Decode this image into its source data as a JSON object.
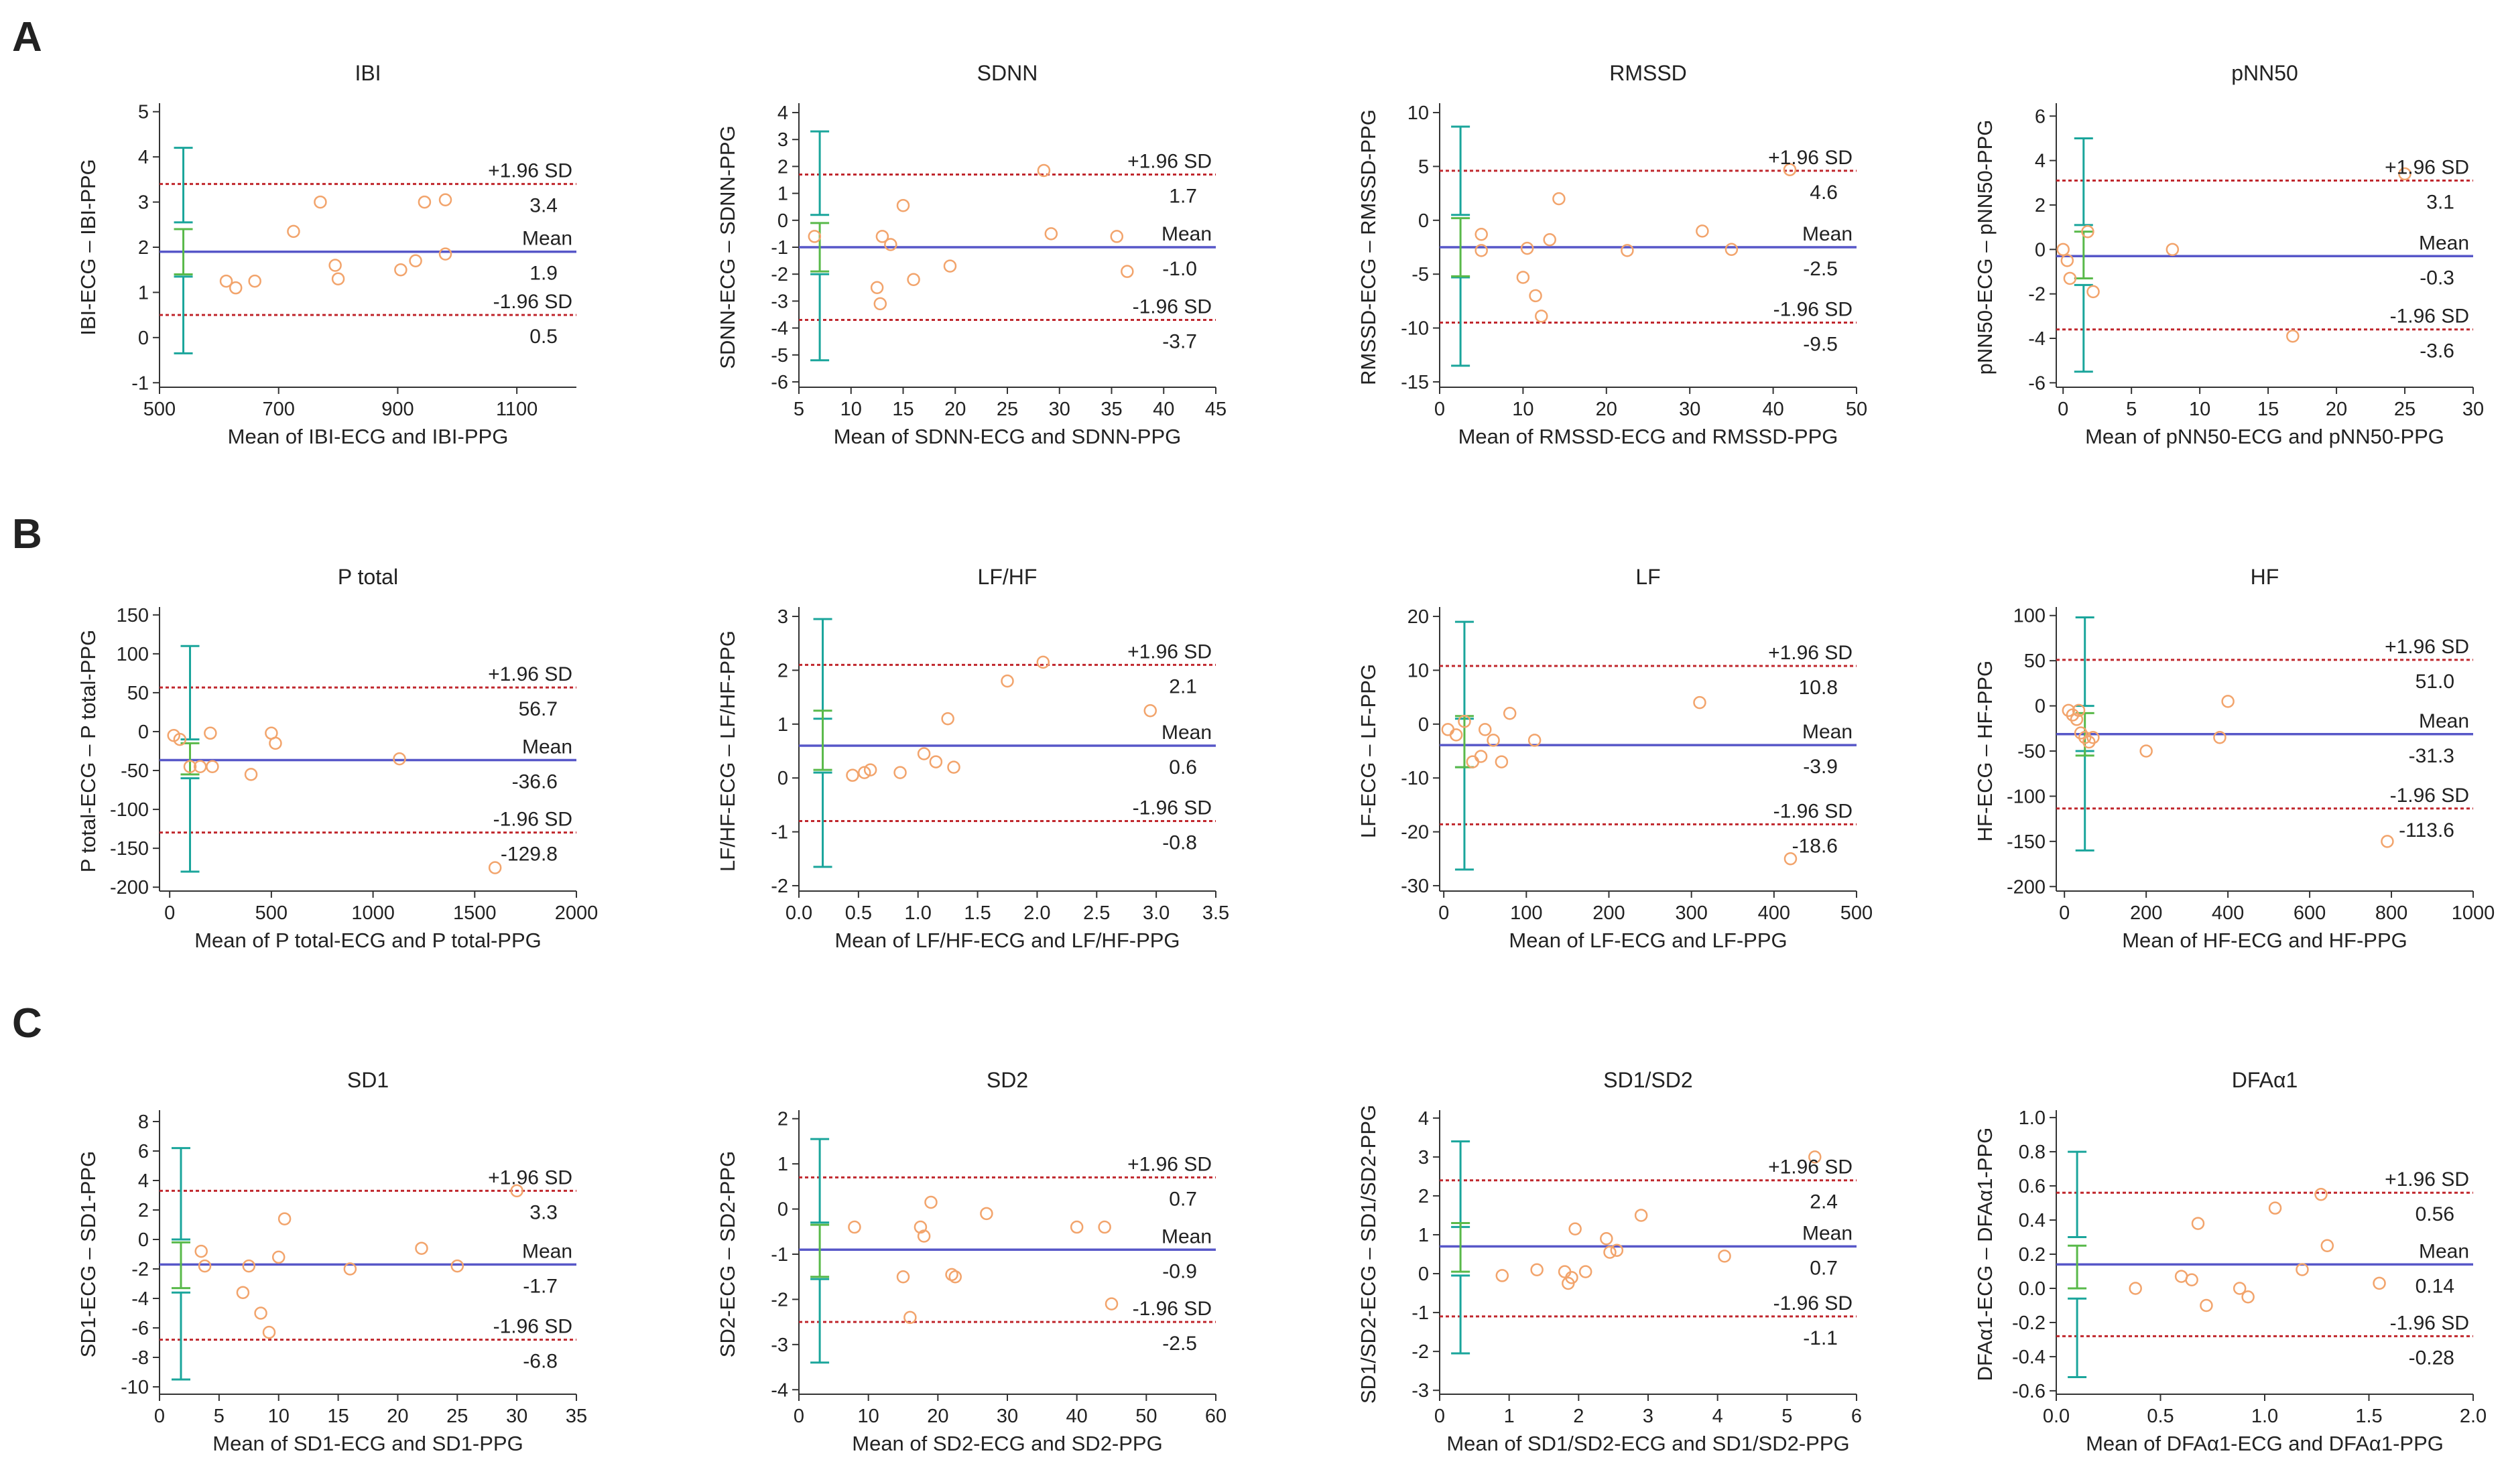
{
  "figure": {
    "panel_labels": [
      "A",
      "B",
      "C"
    ],
    "style": {
      "bias_line_color": "#5757c8",
      "loa_line_color": "#c0272d",
      "point_color": "#f2a46c",
      "ci_color": "#1aa59b",
      "ci_mean_color": "#59b94a",
      "axis_color": "#333333"
    }
  },
  "chart_data": [
    {
      "type": "scatter",
      "row": 0,
      "col": 0,
      "title": "IBI",
      "xlabel": "Mean of IBI-ECG and IBI-PPG",
      "ylabel": "IBI-ECG – IBI-PPG",
      "xlim": [
        500,
        1200
      ],
      "ylim": [
        -1.1,
        5.1
      ],
      "xticks": [
        500,
        700,
        900,
        1100
      ],
      "yticks": [
        -1,
        0,
        1,
        2,
        3,
        4,
        5
      ],
      "mean": 1.9,
      "upper": 3.4,
      "lower": 0.5,
      "mean_label": "1.9",
      "upper_label": "3.4",
      "lower_label": "0.5",
      "ci_x": 540,
      "ci_upper": [
        2.55,
        4.2
      ],
      "ci_mean": [
        1.4,
        2.4
      ],
      "ci_lower": [
        -0.35,
        1.35
      ],
      "points": [
        [
          612,
          1.25
        ],
        [
          628,
          1.1
        ],
        [
          660,
          1.25
        ],
        [
          725,
          2.35
        ],
        [
          770,
          3.0
        ],
        [
          795,
          1.6
        ],
        [
          800,
          1.3
        ],
        [
          905,
          1.5
        ],
        [
          930,
          1.7
        ],
        [
          945,
          3.0
        ],
        [
          980,
          3.05
        ],
        [
          980,
          1.85
        ]
      ]
    },
    {
      "type": "scatter",
      "row": 0,
      "col": 1,
      "title": "SDNN",
      "xlabel": "Mean of SDNN-ECG and SDNN-PPG",
      "ylabel": "SDNN-ECG – SDNN-PPG",
      "xlim": [
        5,
        45
      ],
      "ylim": [
        -6.2,
        4.2
      ],
      "xticks": [
        5,
        10,
        15,
        20,
        25,
        30,
        35,
        40,
        45
      ],
      "yticks": [
        -6,
        -5,
        -4,
        -3,
        -2,
        -1,
        0,
        1,
        2,
        3,
        4
      ],
      "mean": -1.0,
      "upper": 1.7,
      "lower": -3.7,
      "mean_label": "-1.0",
      "upper_label": "1.7",
      "lower_label": "-3.7",
      "ci_x": 7,
      "ci_upper": [
        0.2,
        3.3
      ],
      "ci_mean": [
        -1.9,
        -0.1
      ],
      "ci_lower": [
        -5.2,
        -2.0
      ],
      "points": [
        [
          6.5,
          -0.6
        ],
        [
          12.5,
          -2.5
        ],
        [
          12.8,
          -3.1
        ],
        [
          13,
          -0.6
        ],
        [
          13.8,
          -0.9
        ],
        [
          15,
          0.55
        ],
        [
          16,
          -2.2
        ],
        [
          19.5,
          -1.7
        ],
        [
          28.5,
          1.85
        ],
        [
          29.2,
          -0.5
        ],
        [
          35.5,
          -0.6
        ],
        [
          36.5,
          -1.9
        ]
      ]
    },
    {
      "type": "scatter",
      "row": 0,
      "col": 2,
      "title": "RMSSD",
      "xlabel": "Mean of RMSSD-ECG and RMSSD-PPG",
      "ylabel": "RMSSD-ECG – RMSSD-PPG",
      "xlim": [
        0,
        50
      ],
      "ylim": [
        -15.5,
        10.5
      ],
      "xticks": [
        0,
        10,
        20,
        30,
        40,
        50
      ],
      "yticks": [
        -15,
        -10,
        -5,
        0,
        5,
        10
      ],
      "mean": -2.5,
      "upper": 4.6,
      "lower": -9.5,
      "mean_label": "-2.5",
      "upper_label": "4.6",
      "lower_label": "-9.5",
      "ci_x": 2.5,
      "ci_upper": [
        0.5,
        8.7
      ],
      "ci_mean": [
        -5.2,
        0.2
      ],
      "ci_lower": [
        -13.5,
        -5.3
      ],
      "points": [
        [
          5,
          -1.3
        ],
        [
          5,
          -2.8
        ],
        [
          10,
          -5.3
        ],
        [
          10.5,
          -2.6
        ],
        [
          11.5,
          -7.0
        ],
        [
          12.2,
          -8.9
        ],
        [
          13.2,
          -1.8
        ],
        [
          14.3,
          2.0
        ],
        [
          22.5,
          -2.8
        ],
        [
          31.5,
          -1.0
        ],
        [
          35,
          -2.7
        ],
        [
          42,
          4.7
        ]
      ]
    },
    {
      "type": "scatter",
      "row": 0,
      "col": 3,
      "title": "pNN50",
      "xlabel": "Mean of pNN50-ECG and pNN50-PPG",
      "ylabel": "pNN50-ECG – pNN50-PPG",
      "xlim": [
        -0.5,
        30
      ],
      "ylim": [
        -6.2,
        6.4
      ],
      "xticks": [
        0,
        5,
        10,
        15,
        20,
        25,
        30
      ],
      "yticks": [
        -6,
        -4,
        -2,
        0,
        2,
        4,
        6
      ],
      "mean": -0.3,
      "upper": 3.1,
      "lower": -3.6,
      "mean_label": "-0.3",
      "upper_label": "3.1",
      "lower_label": "-3.6",
      "ci_x": 1.5,
      "ci_upper": [
        1.1,
        5.0
      ],
      "ci_mean": [
        -1.3,
        0.8
      ],
      "ci_lower": [
        -5.5,
        -1.6
      ],
      "points": [
        [
          0,
          0
        ],
        [
          0.3,
          -0.5
        ],
        [
          0.5,
          -1.3
        ],
        [
          1.8,
          0.8
        ],
        [
          2.2,
          -1.9
        ],
        [
          8,
          0
        ],
        [
          16.8,
          -3.9
        ],
        [
          25,
          3.4
        ]
      ]
    },
    {
      "type": "scatter",
      "row": 1,
      "col": 0,
      "title": "P total",
      "xlabel": "Mean of P total-ECG and P total-PPG",
      "ylabel": "P total-ECG – P total-PPG",
      "xlim": [
        -50,
        2000
      ],
      "ylim": [
        -205,
        155
      ],
      "xticks": [
        0,
        500,
        1000,
        1500,
        2000
      ],
      "yticks": [
        -200,
        -150,
        -100,
        -50,
        0,
        50,
        100,
        150
      ],
      "mean": -36.6,
      "upper": 56.7,
      "lower": -129.8,
      "mean_label": "-36.6",
      "upper_label": "56.7",
      "lower_label": "-129.8",
      "ci_x": 100,
      "ci_upper": [
        -10,
        110
      ],
      "ci_mean": [
        -55,
        -15
      ],
      "ci_lower": [
        -180,
        -60
      ],
      "points": [
        [
          20,
          -5
        ],
        [
          50,
          -10
        ],
        [
          100,
          -45
        ],
        [
          150,
          -45
        ],
        [
          200,
          -2
        ],
        [
          210,
          -45
        ],
        [
          400,
          -55
        ],
        [
          500,
          -2
        ],
        [
          520,
          -15
        ],
        [
          1130,
          -35
        ],
        [
          1600,
          -175
        ]
      ]
    },
    {
      "type": "scatter",
      "row": 1,
      "col": 1,
      "title": "LF/HF",
      "xlabel": "Mean of LF/HF-ECG and LF/HF-PPG",
      "ylabel": "LF/HF-ECG – LF/HF-PPG",
      "xlim": [
        0,
        3.5
      ],
      "ylim": [
        -2.1,
        3.1
      ],
      "xticks": [
        "0.0",
        "0.5",
        "1.0",
        "1.5",
        "2.0",
        "2.5",
        "3.0",
        "3.5"
      ],
      "yticks": [
        -2,
        -1,
        0,
        1,
        2,
        3
      ],
      "mean": 0.6,
      "upper": 2.1,
      "lower": -0.8,
      "mean_label": "0.6",
      "upper_label": "2.1",
      "lower_label": "-0.8",
      "ci_x": 0.2,
      "ci_upper": [
        1.1,
        2.95
      ],
      "ci_mean": [
        0.15,
        1.25
      ],
      "ci_lower": [
        -1.65,
        0.1
      ],
      "points": [
        [
          0.45,
          0.05
        ],
        [
          0.55,
          0.1
        ],
        [
          0.6,
          0.15
        ],
        [
          0.85,
          0.1
        ],
        [
          1.05,
          0.45
        ],
        [
          1.15,
          0.3
        ],
        [
          1.25,
          1.1
        ],
        [
          1.3,
          0.2
        ],
        [
          1.75,
          1.8
        ],
        [
          2.05,
          2.15
        ],
        [
          2.95,
          1.25
        ]
      ]
    },
    {
      "type": "scatter",
      "row": 1,
      "col": 2,
      "title": "LF",
      "xlabel": "Mean of LF-ECG and LF-PPG",
      "ylabel": "LF-ECG – LF-PPG",
      "xlim": [
        -5,
        500
      ],
      "ylim": [
        -31,
        21
      ],
      "xticks": [
        0,
        100,
        200,
        300,
        400,
        500
      ],
      "yticks": [
        -30,
        -20,
        -10,
        0,
        10,
        20
      ],
      "mean": -3.9,
      "upper": 10.8,
      "lower": -18.6,
      "mean_label": "-3.9",
      "upper_label": "10.8",
      "lower_label": "-18.6",
      "ci_x": 25,
      "ci_upper": [
        1,
        19
      ],
      "ci_mean": [
        -8,
        1.5
      ],
      "ci_lower": [
        -27,
        -8
      ],
      "points": [
        [
          5,
          -1
        ],
        [
          15,
          -2
        ],
        [
          25,
          0.5
        ],
        [
          35,
          -7
        ],
        [
          45,
          -6
        ],
        [
          50,
          -1
        ],
        [
          60,
          -3
        ],
        [
          70,
          -7
        ],
        [
          80,
          2
        ],
        [
          110,
          -3
        ],
        [
          310,
          4
        ],
        [
          420,
          -25
        ]
      ]
    },
    {
      "type": "scatter",
      "row": 1,
      "col": 3,
      "title": "HF",
      "xlabel": "Mean of HF-ECG and HF-PPG",
      "ylabel": "HF-ECG – HF-PPG",
      "xlim": [
        -20,
        1000
      ],
      "ylim": [
        -205,
        105
      ],
      "xticks": [
        0,
        200,
        400,
        600,
        800,
        1000
      ],
      "yticks": [
        -200,
        -150,
        -100,
        -50,
        0,
        50,
        100
      ],
      "mean": -31.3,
      "upper": 51.0,
      "lower": -113.6,
      "mean_label": "-31.3",
      "upper_label": "51.0",
      "lower_label": "-113.6",
      "ci_x": 50,
      "ci_upper": [
        0,
        98
      ],
      "ci_mean": [
        -55,
        -8
      ],
      "ci_lower": [
        -160,
        -50
      ],
      "points": [
        [
          10,
          -5
        ],
        [
          20,
          -10
        ],
        [
          30,
          -15
        ],
        [
          35,
          -5
        ],
        [
          40,
          -30
        ],
        [
          50,
          -35
        ],
        [
          60,
          -40
        ],
        [
          70,
          -35
        ],
        [
          200,
          -50
        ],
        [
          380,
          -35
        ],
        [
          400,
          5
        ],
        [
          790,
          -150
        ]
      ]
    },
    {
      "type": "scatter",
      "row": 2,
      "col": 0,
      "title": "SD1",
      "xlabel": "Mean of SD1-ECG and SD1-PPG",
      "ylabel": "SD1-ECG – SD1-PPG",
      "xlim": [
        0,
        35
      ],
      "ylim": [
        -10.5,
        8.5
      ],
      "xticks": [
        0,
        5,
        10,
        15,
        20,
        25,
        30,
        35
      ],
      "yticks": [
        -10,
        -8,
        -6,
        -4,
        -2,
        0,
        2,
        4,
        6,
        8
      ],
      "mean": -1.7,
      "upper": 3.3,
      "lower": -6.8,
      "mean_label": "-1.7",
      "upper_label": "3.3",
      "lower_label": "-6.8",
      "ci_x": 1.8,
      "ci_upper": [
        0,
        6.2
      ],
      "ci_mean": [
        -3.3,
        -0.2
      ],
      "ci_lower": [
        -9.5,
        -3.6
      ],
      "points": [
        [
          3.5,
          -0.8
        ],
        [
          3.8,
          -1.8
        ],
        [
          7,
          -3.6
        ],
        [
          7.5,
          -1.8
        ],
        [
          8.5,
          -5.0
        ],
        [
          9.2,
          -6.3
        ],
        [
          10,
          -1.2
        ],
        [
          10.5,
          1.4
        ],
        [
          16,
          -2.0
        ],
        [
          22,
          -0.6
        ],
        [
          25,
          -1.8
        ],
        [
          30,
          3.3
        ]
      ]
    },
    {
      "type": "scatter",
      "row": 2,
      "col": 1,
      "title": "SD2",
      "xlabel": "Mean of SD2-ECG and SD2-PPG",
      "ylabel": "SD2-ECG – SD2-PPG",
      "xlim": [
        0,
        60
      ],
      "ylim": [
        -4.1,
        2.1
      ],
      "xticks": [
        0,
        10,
        20,
        30,
        40,
        50,
        60
      ],
      "yticks": [
        -4,
        -3,
        -2,
        -1,
        0,
        1,
        2
      ],
      "mean": -0.9,
      "upper": 0.7,
      "lower": -2.5,
      "mean_label": "-0.9",
      "upper_label": "0.7",
      "lower_label": "-2.5",
      "ci_x": 3,
      "ci_upper": [
        -0.3,
        1.55
      ],
      "ci_mean": [
        -1.5,
        -0.35
      ],
      "ci_lower": [
        -3.4,
        -1.55
      ],
      "points": [
        [
          8,
          -0.4
        ],
        [
          15,
          -1.5
        ],
        [
          16,
          -2.4
        ],
        [
          17.5,
          -0.4
        ],
        [
          18,
          -0.6
        ],
        [
          19,
          0.15
        ],
        [
          22,
          -1.45
        ],
        [
          22.5,
          -1.5
        ],
        [
          27,
          -0.1
        ],
        [
          40,
          -0.4
        ],
        [
          44,
          -0.4
        ],
        [
          45,
          -2.1
        ]
      ]
    },
    {
      "type": "scatter",
      "row": 2,
      "col": 2,
      "title": "SD1/SD2",
      "xlabel": "Mean of SD1/SD2-ECG and SD1/SD2-PPG",
      "ylabel": "SD1/SD2-ECG – SD1/SD2-PPG",
      "xlim": [
        0,
        6
      ],
      "ylim": [
        -3.1,
        4.1
      ],
      "xticks": [
        0,
        1,
        2,
        3,
        4,
        5,
        6
      ],
      "yticks": [
        -3,
        -2,
        -1,
        0,
        1,
        2,
        3,
        4
      ],
      "mean": 0.7,
      "upper": 2.4,
      "lower": -1.1,
      "mean_label": "0.7",
      "upper_label": "2.4",
      "lower_label": "-1.1",
      "ci_x": 0.3,
      "ci_upper": [
        1.2,
        3.4
      ],
      "ci_mean": [
        0.05,
        1.3
      ],
      "ci_lower": [
        -2.05,
        -0.05
      ],
      "points": [
        [
          0.9,
          -0.05
        ],
        [
          1.4,
          0.1
        ],
        [
          1.8,
          0.05
        ],
        [
          1.85,
          -0.25
        ],
        [
          1.9,
          -0.1
        ],
        [
          1.95,
          1.15
        ],
        [
          2.1,
          0.05
        ],
        [
          2.4,
          0.9
        ],
        [
          2.45,
          0.55
        ],
        [
          2.55,
          0.6
        ],
        [
          2.9,
          1.5
        ],
        [
          4.1,
          0.45
        ],
        [
          5.4,
          3.0
        ]
      ]
    },
    {
      "type": "scatter",
      "row": 2,
      "col": 3,
      "title": "DFAα1",
      "xlabel": "Mean of DFAα1-ECG and DFAα1-PPG",
      "ylabel": "DFAα1-ECG – DFAα1-PPG",
      "xlim": [
        0,
        2.0
      ],
      "ylim": [
        -0.62,
        1.02
      ],
      "xticks": [
        "0.0",
        "0.5",
        "1.0",
        "1.5",
        "2.0"
      ],
      "yticks": [
        "-0.6",
        "-0.4",
        "-0.2",
        "0.0",
        "0.2",
        "0.4",
        "0.6",
        "0.8",
        "1.0"
      ],
      "mean": 0.14,
      "upper": 0.56,
      "lower": -0.28,
      "mean_label": "0.14",
      "upper_label": "0.56",
      "lower_label": "-0.28",
      "ci_x": 0.1,
      "ci_upper": [
        0.3,
        0.8
      ],
      "ci_mean": [
        0.0,
        0.25
      ],
      "ci_lower": [
        -0.52,
        -0.06
      ],
      "points": [
        [
          0.38,
          0.0
        ],
        [
          0.6,
          0.07
        ],
        [
          0.65,
          0.05
        ],
        [
          0.68,
          0.38
        ],
        [
          0.72,
          -0.1
        ],
        [
          0.88,
          0.0
        ],
        [
          0.92,
          -0.05
        ],
        [
          1.05,
          0.47
        ],
        [
          1.18,
          0.11
        ],
        [
          1.27,
          0.55
        ],
        [
          1.3,
          0.25
        ],
        [
          1.55,
          0.03
        ]
      ]
    }
  ]
}
